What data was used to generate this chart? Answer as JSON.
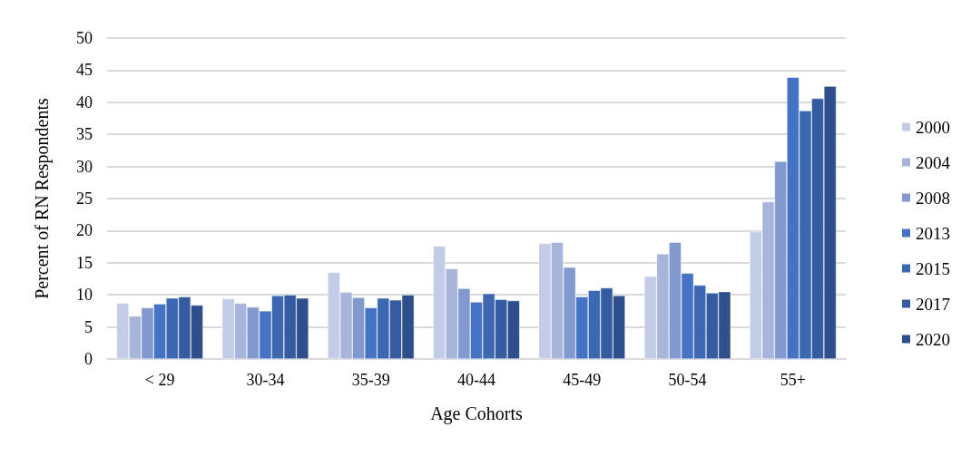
{
  "chart_data": {
    "type": "bar",
    "xlabel": "Age Cohorts",
    "ylabel": "Percent of RN Respondents",
    "categories": [
      "< 29",
      "30-34",
      "35-39",
      "40-44",
      "45-49",
      "50-54",
      "55+"
    ],
    "series": [
      {
        "name": "2000",
        "color": "#c3cce6",
        "values": [
          8.7,
          9.4,
          13.5,
          17.6,
          18.0,
          12.9,
          19.8
        ]
      },
      {
        "name": "2004",
        "color": "#a7b5db",
        "values": [
          6.7,
          8.7,
          10.4,
          14.1,
          18.2,
          16.4,
          24.5
        ]
      },
      {
        "name": "2008",
        "color": "#8299d0",
        "values": [
          8.0,
          8.1,
          9.6,
          11.0,
          14.3,
          18.2,
          30.8
        ]
      },
      {
        "name": "2013",
        "color": "#4472c4",
        "values": [
          8.6,
          7.5,
          8.0,
          8.9,
          9.7,
          13.4,
          43.9
        ]
      },
      {
        "name": "2015",
        "color": "#3c68b2",
        "values": [
          9.5,
          9.9,
          9.5,
          10.2,
          10.7,
          11.5,
          38.7
        ]
      },
      {
        "name": "2017",
        "color": "#355ca0",
        "values": [
          9.7,
          10.0,
          9.2,
          9.3,
          11.1,
          10.3,
          40.6
        ]
      },
      {
        "name": "2020",
        "color": "#2e4f8c",
        "values": [
          8.4,
          9.5,
          10.0,
          9.1,
          9.9,
          10.5,
          42.5
        ]
      }
    ],
    "ylim": [
      0,
      50
    ],
    "yticks": [
      0,
      5,
      10,
      15,
      20,
      25,
      30,
      35,
      40,
      45,
      50
    ],
    "grid": "y",
    "legend": "right"
  }
}
